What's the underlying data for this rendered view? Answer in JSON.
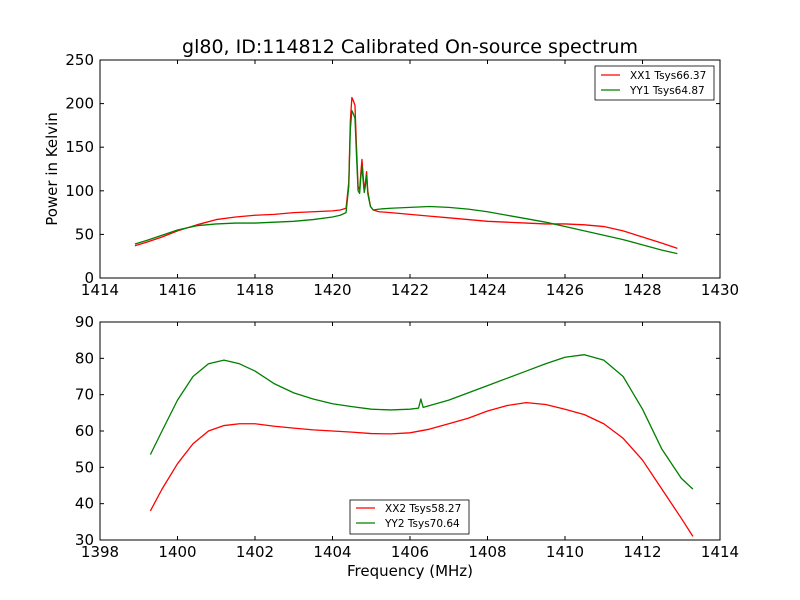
{
  "chart_data": [
    {
      "type": "line",
      "title": "gl80, ID:114812 Calibrated On-source spectrum",
      "xlabel": "",
      "ylabel": "Power in Kelvin",
      "xlim": [
        1414,
        1430
      ],
      "ylim": [
        0,
        250
      ],
      "xticks": [
        "1414",
        "1416",
        "1418",
        "1420",
        "1422",
        "1424",
        "1426",
        "1428",
        "1430"
      ],
      "yticks": [
        "0",
        "50",
        "100",
        "150",
        "200",
        "250"
      ],
      "legend_position": "top-right",
      "grid": false,
      "series": [
        {
          "name": "XX1 Tsys66.37",
          "color": "#ff0000",
          "x": [
            1414.9,
            1415.2,
            1415.6,
            1416.0,
            1416.5,
            1417.0,
            1417.5,
            1418.0,
            1418.5,
            1419.0,
            1419.5,
            1420.0,
            1420.2,
            1420.35,
            1420.42,
            1420.46,
            1420.5,
            1420.54,
            1420.58,
            1420.62,
            1420.66,
            1420.7,
            1420.73,
            1420.76,
            1420.79,
            1420.82,
            1420.85,
            1420.88,
            1420.91,
            1420.94,
            1420.98,
            1421.05,
            1421.2,
            1421.5,
            1422.0,
            1422.5,
            1423.0,
            1423.5,
            1424.0,
            1424.5,
            1425.0,
            1425.5,
            1426.0,
            1426.5,
            1427.0,
            1427.5,
            1428.0,
            1428.5,
            1428.9
          ],
          "y": [
            37,
            41,
            47,
            54,
            61,
            67,
            70,
            72,
            73,
            75,
            76,
            77,
            78,
            80,
            110,
            180,
            207,
            203,
            198,
            150,
            105,
            101,
            120,
            136,
            118,
            100,
            110,
            122,
            100,
            92,
            82,
            78,
            76,
            75,
            73,
            71,
            69,
            67,
            65,
            64,
            63,
            62,
            62,
            61,
            59,
            54,
            47,
            40,
            34
          ]
        },
        {
          "name": "YY1 Tsys64.87",
          "color": "#008000",
          "x": [
            1414.9,
            1415.2,
            1415.6,
            1416.0,
            1416.5,
            1417.0,
            1417.5,
            1418.0,
            1418.5,
            1419.0,
            1419.5,
            1420.0,
            1420.2,
            1420.35,
            1420.42,
            1420.46,
            1420.5,
            1420.54,
            1420.58,
            1420.62,
            1420.66,
            1420.7,
            1420.73,
            1420.76,
            1420.79,
            1420.82,
            1420.85,
            1420.88,
            1420.91,
            1420.94,
            1420.98,
            1421.05,
            1421.2,
            1421.5,
            1422.0,
            1422.5,
            1423.0,
            1423.5,
            1424.0,
            1424.5,
            1425.0,
            1425.5,
            1426.0,
            1426.5,
            1427.0,
            1427.5,
            1428.0,
            1428.5,
            1428.9
          ],
          "y": [
            39,
            43,
            49,
            55,
            60,
            62,
            63,
            63,
            64,
            65,
            67,
            70,
            72,
            75,
            105,
            170,
            192,
            188,
            183,
            140,
            100,
            97,
            115,
            128,
            112,
            98,
            106,
            118,
            97,
            90,
            82,
            78,
            79,
            80,
            81,
            82,
            81,
            79,
            76,
            72,
            68,
            64,
            59,
            54,
            49,
            44,
            38,
            32,
            28
          ]
        }
      ]
    },
    {
      "type": "line",
      "title": "",
      "xlabel": "Frequency (MHz)",
      "ylabel": "",
      "xlim": [
        1398,
        1414
      ],
      "ylim": [
        30,
        90
      ],
      "xticks": [
        "1398",
        "1400",
        "1402",
        "1404",
        "1406",
        "1408",
        "1410",
        "1412",
        "1414"
      ],
      "yticks": [
        "30",
        "40",
        "50",
        "60",
        "70",
        "80",
        "90"
      ],
      "legend_position": "lower-center",
      "grid": false,
      "series": [
        {
          "name": "XX2 Tsys58.27",
          "color": "#ff0000",
          "x": [
            1399.3,
            1399.6,
            1400.0,
            1400.4,
            1400.8,
            1401.2,
            1401.6,
            1402.0,
            1402.5,
            1403.0,
            1403.5,
            1404.0,
            1404.5,
            1405.0,
            1405.5,
            1406.0,
            1406.5,
            1407.0,
            1407.5,
            1408.0,
            1408.5,
            1409.0,
            1409.5,
            1410.0,
            1410.5,
            1411.0,
            1411.5,
            1412.0,
            1412.5,
            1413.0,
            1413.3
          ],
          "y": [
            38,
            44,
            51,
            56.5,
            60,
            61.5,
            62,
            62,
            61.3,
            60.8,
            60.3,
            60,
            59.7,
            59.3,
            59.2,
            59.5,
            60.5,
            62,
            63.5,
            65.5,
            67,
            67.8,
            67.3,
            66,
            64.5,
            62,
            58,
            52,
            44,
            36,
            31
          ]
        },
        {
          "name": "YY2 Tsys70.64",
          "color": "#008000",
          "x": [
            1399.3,
            1399.6,
            1400.0,
            1400.4,
            1400.8,
            1401.2,
            1401.6,
            1402.0,
            1402.5,
            1403.0,
            1403.5,
            1404.0,
            1404.5,
            1405.0,
            1405.5,
            1406.0,
            1406.22,
            1406.28,
            1406.34,
            1406.5,
            1407.0,
            1407.5,
            1408.0,
            1408.5,
            1409.0,
            1409.5,
            1410.0,
            1410.5,
            1411.0,
            1411.5,
            1412.0,
            1412.5,
            1413.0,
            1413.3
          ],
          "y": [
            53.5,
            60,
            68.5,
            75,
            78.5,
            79.5,
            78.5,
            76.5,
            73,
            70.5,
            68.8,
            67.5,
            66.7,
            66,
            65.8,
            66,
            66.3,
            68.8,
            66.5,
            67,
            68.5,
            70.5,
            72.5,
            74.5,
            76.5,
            78.5,
            80.3,
            81,
            79.5,
            75,
            66,
            55,
            47,
            44
          ]
        }
      ]
    }
  ]
}
